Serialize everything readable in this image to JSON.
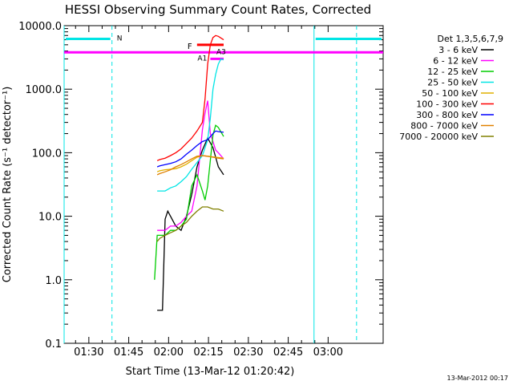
{
  "chart_data": {
    "type": "line",
    "title": "HESSI Observing Summary Count Rates, Corrected",
    "xlabel": "Start Time (13-Mar-12 01:20:42)",
    "ylabel": "Corrected Count Rate (s⁻¹ detector⁻¹)",
    "ylim": [
      0.1,
      10000
    ],
    "yscale": "log",
    "x_ticks": [
      "01:30",
      "01:45",
      "02:00",
      "02:15",
      "02:30",
      "02:45",
      "03:00"
    ],
    "y_ticks": [
      "0.1",
      "1.0",
      "10.0",
      "100.0",
      "1000.0",
      "10000.0"
    ],
    "legend": {
      "placement": "right",
      "header": "Det 1,3,5,6,7,9"
    },
    "timestamp": "13-Mar-2012 00:17",
    "flags": {
      "N_label": "N",
      "F_label": "F",
      "A1_label": "A1",
      "A3_label": "A3"
    },
    "series": [
      {
        "name": "3 - 6 keV",
        "color": "#000000",
        "x": [
          35,
          36,
          37,
          38,
          39,
          40,
          42,
          44,
          46,
          48,
          50,
          52,
          54,
          56,
          58,
          60
        ],
        "y": [
          0.33,
          0.33,
          0.33,
          9,
          12,
          10,
          7,
          6,
          10,
          22,
          60,
          110,
          170,
          120,
          60,
          45
        ]
      },
      {
        "name": "6 - 12 keV",
        "color": "#ff00ff",
        "x": [
          35,
          36,
          38,
          40,
          42,
          44,
          46,
          48,
          50,
          52,
          53,
          54,
          55,
          56,
          57,
          58,
          60
        ],
        "y": [
          6,
          6,
          6,
          7,
          7,
          8,
          10,
          12,
          30,
          230,
          420,
          660,
          200,
          150,
          110,
          100,
          80
        ]
      },
      {
        "name": "12 - 25 keV",
        "color": "#00cc00",
        "x": [
          34,
          35,
          36,
          38,
          40,
          42,
          44,
          46,
          48,
          50,
          52,
          53,
          54,
          56,
          57,
          58,
          60
        ],
        "y": [
          1.0,
          5,
          5,
          5,
          6,
          6,
          7,
          9,
          30,
          45,
          25,
          18,
          30,
          190,
          270,
          250,
          180
        ]
      },
      {
        "name": "25 - 50 keV",
        "color": "#00e5e5",
        "x": [
          35,
          36,
          38,
          40,
          42,
          44,
          46,
          48,
          50,
          52,
          53,
          54,
          55,
          56,
          57,
          58,
          59,
          60
        ],
        "y": [
          25,
          25,
          25,
          28,
          30,
          35,
          42,
          55,
          70,
          90,
          120,
          160,
          350,
          1000,
          1700,
          2500,
          3000,
          2900
        ]
      },
      {
        "name": "50 - 100 keV",
        "color": "#e0b000",
        "x": [
          35,
          36,
          38,
          40,
          42,
          44,
          46,
          48,
          50,
          52,
          54,
          56,
          58,
          60
        ],
        "y": [
          50,
          52,
          54,
          55,
          56,
          60,
          66,
          75,
          85,
          90,
          88,
          86,
          84,
          82
        ]
      },
      {
        "name": "100 - 300 keV",
        "color": "#ff0000",
        "x": [
          35,
          36,
          38,
          40,
          42,
          44,
          46,
          48,
          50,
          52,
          53,
          54,
          55,
          56,
          57,
          58,
          60
        ],
        "y": [
          75,
          78,
          82,
          90,
          100,
          115,
          140,
          170,
          220,
          300,
          700,
          2500,
          5000,
          6500,
          7000,
          6800,
          6000
        ]
      },
      {
        "name": "300 - 800 keV",
        "color": "#0000ff",
        "x": [
          35,
          36,
          38,
          40,
          42,
          44,
          46,
          48,
          50,
          52,
          54,
          56,
          57,
          58,
          60
        ],
        "y": [
          60,
          62,
          65,
          68,
          72,
          80,
          95,
          110,
          130,
          150,
          160,
          200,
          220,
          215,
          210
        ]
      },
      {
        "name": "800 - 7000 keV",
        "color": "#e08000",
        "x": [
          35,
          36,
          38,
          40,
          42,
          44,
          46,
          48,
          50,
          52,
          54,
          56,
          58,
          60
        ],
        "y": [
          45,
          47,
          50,
          54,
          60,
          65,
          72,
          80,
          88,
          90,
          88,
          85,
          82,
          80
        ]
      },
      {
        "name": "7000 - 20000 keV",
        "color": "#808000",
        "x": [
          35,
          36,
          38,
          40,
          42,
          44,
          46,
          48,
          50,
          52,
          54,
          56,
          58,
          60
        ],
        "y": [
          4,
          4.5,
          5,
          5.5,
          6,
          7,
          8,
          10,
          12,
          14,
          14,
          13,
          13,
          12
        ]
      }
    ],
    "attenuator_states": [
      {
        "label": "A1",
        "color": "#ff00ff",
        "x_start": 0,
        "x_end": 120,
        "y": 3800
      },
      {
        "label": "A3",
        "color": "#ff00ff",
        "x_start": 55,
        "x_end": 60,
        "y": 3000
      }
    ],
    "flare_flag": {
      "label": "F",
      "color": "#ff0000",
      "x_start": 50,
      "x_end": 60,
      "y": 5000
    },
    "night_flag": {
      "label": "N",
      "color": "#00e5e5",
      "segments": [
        [
          0,
          18
        ],
        [
          94,
          120
        ]
      ],
      "y": 6200
    },
    "night_boundaries_x": [
      0,
      18,
      94,
      110
    ]
  }
}
